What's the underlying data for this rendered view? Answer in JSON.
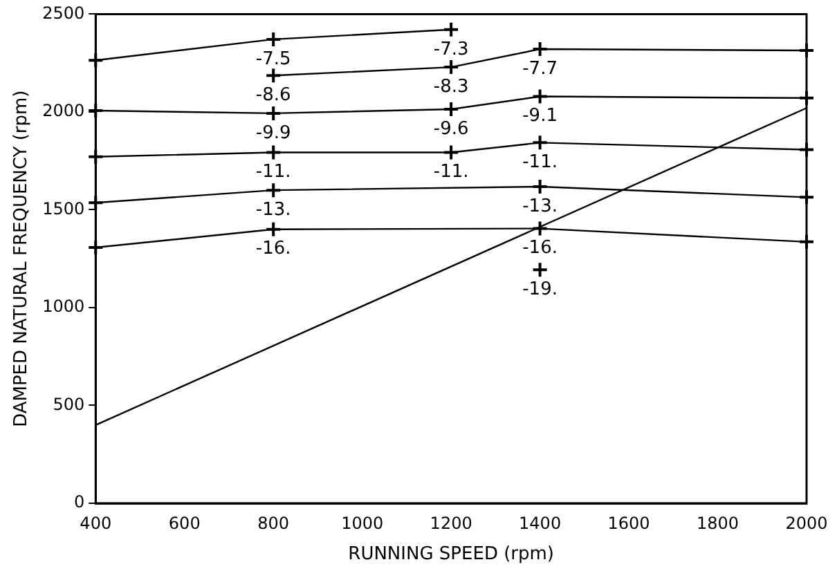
{
  "chart_data": {
    "type": "line",
    "xlabel": "RUNNING SPEED (rpm)",
    "ylabel": "DAMPED NATURAL FREQUENCY (rpm)",
    "xlim": [
      400,
      2000
    ],
    "xticks": [
      400,
      600,
      800,
      1000,
      1200,
      1400,
      1600,
      1800,
      2000
    ],
    "ylim": [
      0,
      2500
    ],
    "yticks": [
      0,
      500,
      1000,
      1500,
      2000,
      2500
    ],
    "grid": false,
    "legend": false,
    "marker": "cross",
    "line_style": "solid",
    "series": [
      {
        "color": "#000000",
        "x": [
          400,
          800,
          1200
        ],
        "values": [
          2264,
          2371,
          2421
        ]
      },
      {
        "color": "#000000",
        "x": [
          800,
          1200,
          1400,
          2000
        ],
        "values": [
          2186,
          2229,
          2321,
          2314
        ]
      },
      {
        "color": "#000000",
        "x": [
          400,
          800,
          1200,
          1400,
          2000
        ],
        "values": [
          2007,
          1993,
          2014,
          2079,
          2071
        ]
      },
      {
        "color": "#000000",
        "x": [
          400,
          800,
          1200,
          1400,
          2000
        ],
        "values": [
          1771,
          1793,
          1793,
          1843,
          1807
        ]
      },
      {
        "color": "#000000",
        "x": [
          400,
          800,
          1400,
          2000
        ],
        "values": [
          1536,
          1600,
          1618,
          1564
        ]
      },
      {
        "color": "#000000",
        "x": [
          400,
          800,
          1400,
          2000
        ],
        "values": [
          1307,
          1400,
          1404,
          1336
        ]
      },
      {
        "color": "#000000",
        "type": "scatter",
        "x": [
          1400
        ],
        "values": [
          1193
        ]
      },
      {
        "color": "#000000",
        "marker": "none",
        "x": [
          400,
          2000
        ],
        "values": [
          400,
          2020
        ]
      }
    ],
    "annotations": [
      {
        "text": "-7.5",
        "x": 800,
        "y": 2371
      },
      {
        "text": "-8.6",
        "x": 800,
        "y": 2186
      },
      {
        "text": "-9.9",
        "x": 800,
        "y": 1993
      },
      {
        "text": "-11.",
        "x": 800,
        "y": 1793
      },
      {
        "text": "-13.",
        "x": 800,
        "y": 1600
      },
      {
        "text": "-16.",
        "x": 800,
        "y": 1400
      },
      {
        "text": "-7.3",
        "x": 1200,
        "y": 2421
      },
      {
        "text": "-8.3",
        "x": 1200,
        "y": 2229
      },
      {
        "text": "-9.6",
        "x": 1200,
        "y": 2014
      },
      {
        "text": "-11.",
        "x": 1200,
        "y": 1793
      },
      {
        "text": "-7.7",
        "x": 1400,
        "y": 2321
      },
      {
        "text": "-9.1",
        "x": 1400,
        "y": 2079
      },
      {
        "text": "-11.",
        "x": 1400,
        "y": 1843
      },
      {
        "text": "-13.",
        "x": 1400,
        "y": 1618
      },
      {
        "text": "-16.",
        "x": 1400,
        "y": 1404
      },
      {
        "text": "-19.",
        "x": 1400,
        "y": 1193
      }
    ]
  }
}
